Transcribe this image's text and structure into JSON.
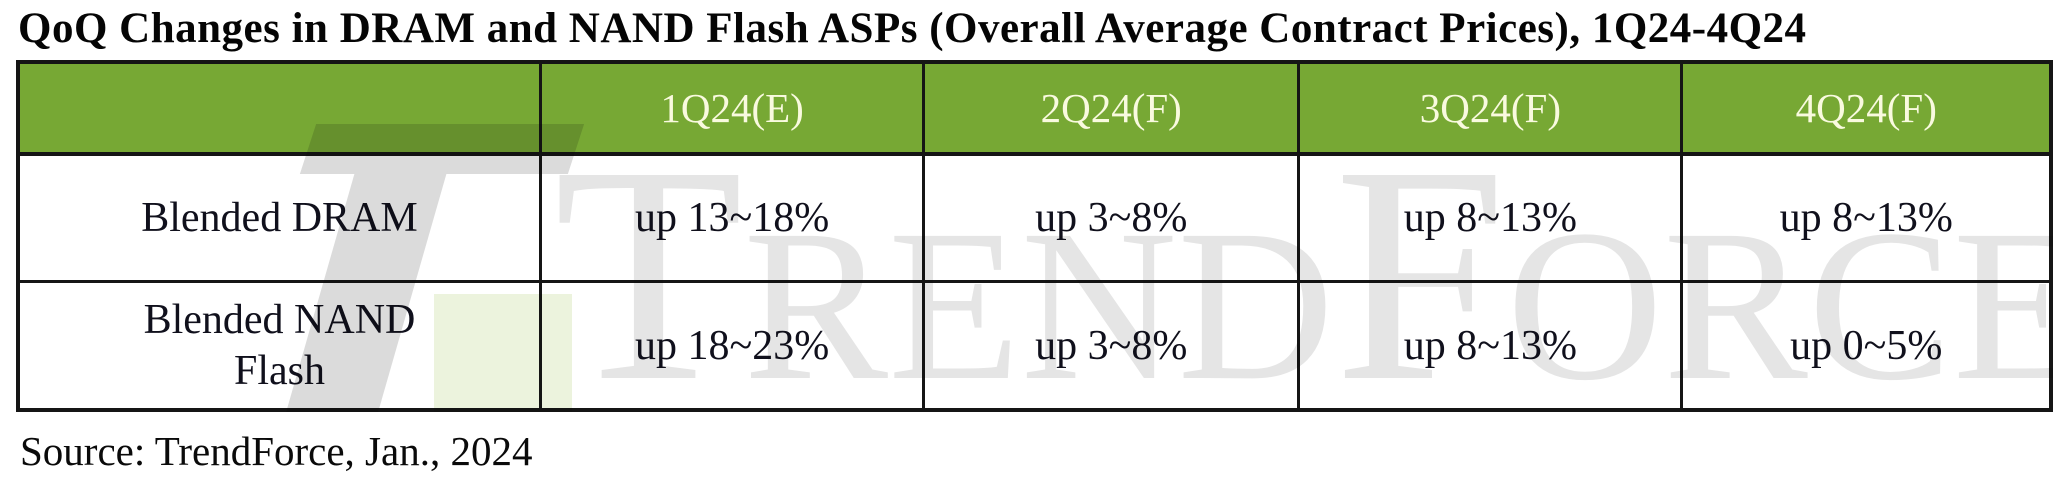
{
  "title": "QoQ Changes in DRAM and NAND Flash ASPs (Overall Average Contract Prices), 1Q24-4Q24",
  "chart_data": {
    "type": "table",
    "title": "QoQ Changes in DRAM and NAND Flash ASPs (Overall Average Contract Prices), 1Q24-4Q24",
    "columns": [
      "",
      "1Q24(E)",
      "2Q24(F)",
      "3Q24(F)",
      "4Q24(F)"
    ],
    "rows": [
      [
        "Blended DRAM",
        "up 13~18%",
        "up 3~8%",
        "up 8~13%",
        "up 8~13%"
      ],
      [
        "Blended NAND Flash",
        "up 18~23%",
        "up 3~8%",
        "up 8~13%",
        "up 0~5%"
      ]
    ]
  },
  "source": "Source: TrendForce, Jan., 2024",
  "watermark": {
    "text": "TrendForce"
  },
  "colors": {
    "header_bg": "#77a834",
    "header_text": "#f9fadf",
    "border": "#151515",
    "watermark_gray": "#dbdbdb",
    "watermark_green": "#ecf3dd"
  }
}
